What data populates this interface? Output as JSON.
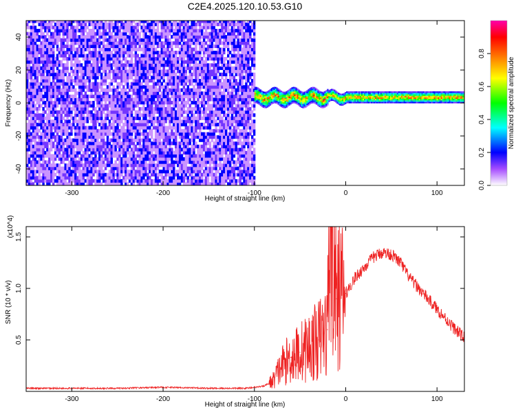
{
  "title": "C2E4.2025.120.10.53.G10",
  "chart_data": [
    {
      "type": "heatmap",
      "xlabel": "Height of straight line (km)",
      "ylabel": "Frequency (Hz)",
      "xlim": [
        -350,
        130
      ],
      "ylim": [
        -50,
        50
      ],
      "xticks": [
        -300,
        -200,
        -100,
        0,
        100
      ],
      "yticks": [
        -40,
        -20,
        0,
        20,
        40
      ],
      "colorbar": {
        "label": "Normalized spectral amplitude",
        "range": [
          0,
          1
        ],
        "ticks": [
          "0.0",
          "0.2",
          "0.4",
          "0.6",
          "0.8"
        ],
        "colors": [
          "#ffffff",
          "#8000ff",
          "#0000ff",
          "#00ffff",
          "#00ff00",
          "#ffff00",
          "#ff8000",
          "#ff0000",
          "#ff00ff"
        ]
      },
      "regions": [
        {
          "x_range": [
            -350,
            -100
          ],
          "freq_range": [
            -50,
            50
          ],
          "amplitude": "low (0.1-0.3)",
          "pattern": "speckled noise"
        },
        {
          "x_range": [
            -100,
            130
          ],
          "freq_center": 3,
          "freq_halfwidth": 4,
          "amplitude": "high (0.5-1.0)",
          "pattern": "narrow band"
        }
      ]
    },
    {
      "type": "line",
      "xlabel": "Height of straight line (km)",
      "ylabel": "SNR (10 * v/v)",
      "y_multiplier": "(x10^4)",
      "xlim": [
        -350,
        130
      ],
      "ylim": [
        0,
        1.6
      ],
      "xticks": [
        -300,
        -200,
        -100,
        0,
        100
      ],
      "yticks": [
        "0.5",
        "1.0",
        "1.5"
      ],
      "series": [
        {
          "color": "#ee2222",
          "x": [
            -350,
            -300,
            -250,
            -200,
            -150,
            -110,
            -100,
            -90,
            -80,
            -70,
            -60,
            -50,
            -40,
            -30,
            -20,
            -18,
            -10,
            0,
            10,
            20,
            30,
            40,
            50,
            60,
            70,
            80,
            90,
            100,
            110,
            120,
            130
          ],
          "y": [
            0.03,
            0.03,
            0.03,
            0.04,
            0.03,
            0.03,
            0.04,
            0.05,
            0.1,
            0.25,
            0.33,
            0.38,
            0.43,
            0.5,
            0.6,
            1.6,
            0.9,
            0.95,
            1.1,
            1.2,
            1.3,
            1.35,
            1.33,
            1.25,
            1.1,
            1.0,
            0.9,
            0.8,
            0.7,
            0.6,
            0.52
          ]
        }
      ]
    }
  ]
}
